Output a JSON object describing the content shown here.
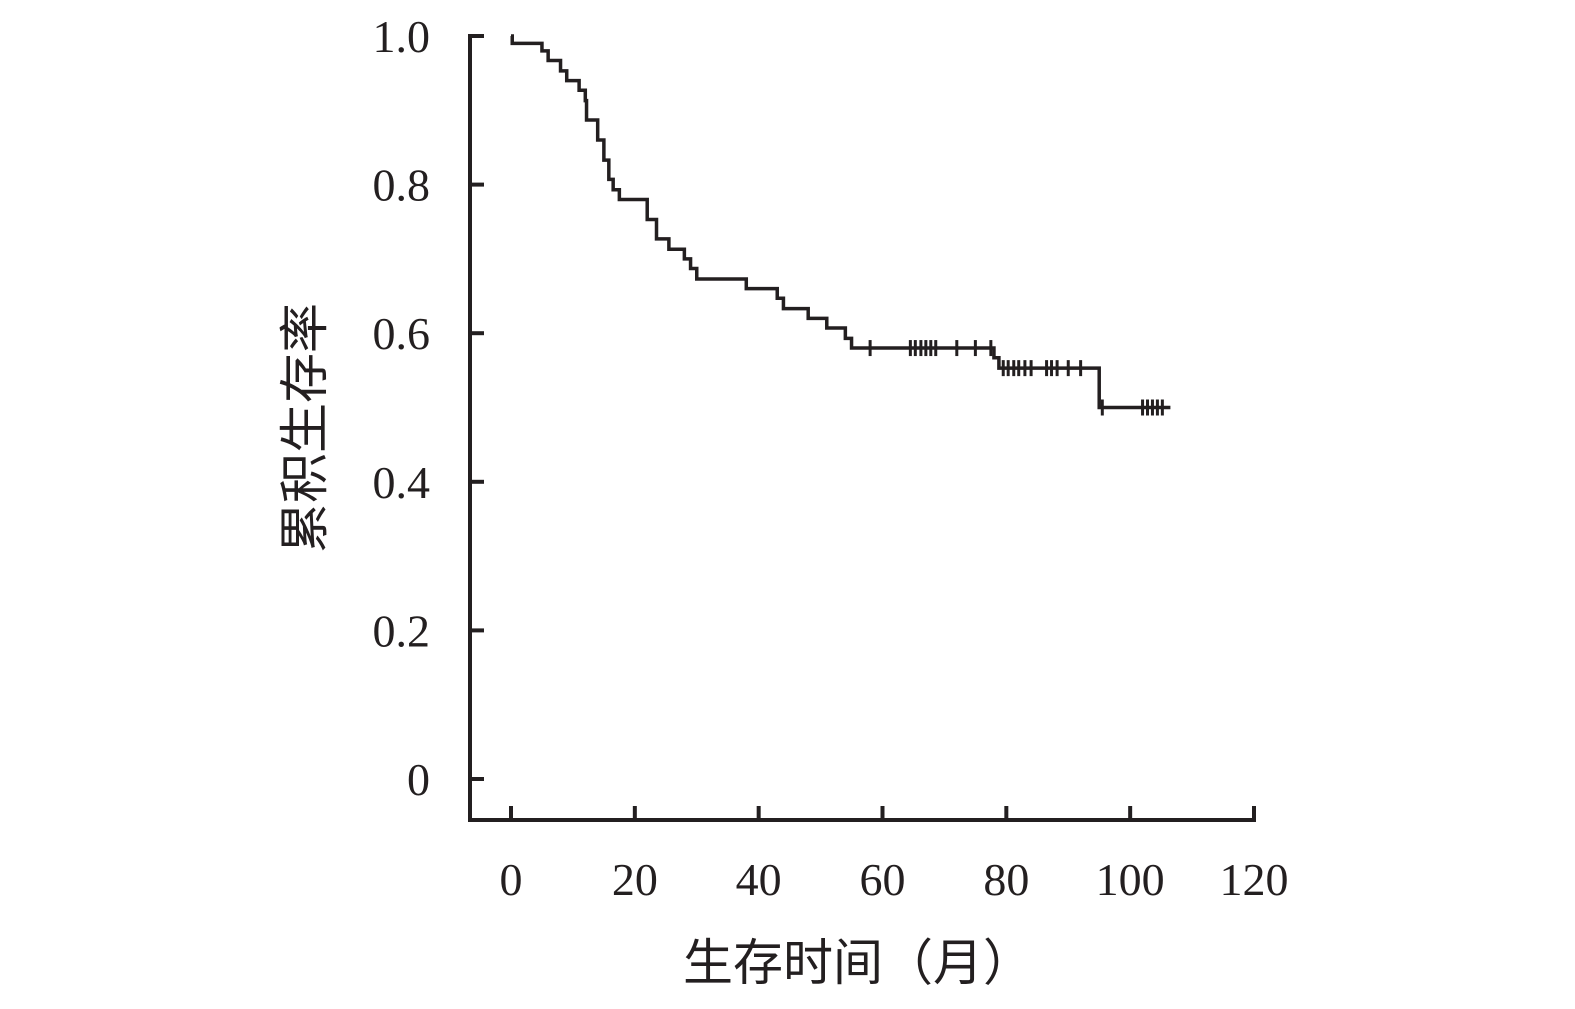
{
  "chart_data": {
    "type": "line",
    "subtype": "kaplan-meier step curve with censor marks",
    "xlabel": "生存时间（月）",
    "ylabel": "累积生存率",
    "xlim": [
      0,
      120
    ],
    "ylim": [
      0,
      1.0
    ],
    "x_ticks": [
      0,
      20,
      40,
      60,
      80,
      100,
      120
    ],
    "x_tick_labels": [
      "0",
      "20",
      "40",
      "60",
      "80",
      "100",
      "120"
    ],
    "y_ticks": [
      0,
      0.2,
      0.4,
      0.6,
      0.8,
      1.0
    ],
    "y_tick_labels": [
      "0",
      "0.2",
      "0.4",
      "0.6",
      "0.8",
      "1.0"
    ],
    "grid": false,
    "series": [
      {
        "steps": [
          [
            0,
            1.0
          ],
          [
            0.2,
            0.99
          ],
          [
            5,
            0.98
          ],
          [
            6,
            0.967
          ],
          [
            8,
            0.953
          ],
          [
            9,
            0.94
          ],
          [
            11,
            0.927
          ],
          [
            12,
            0.913
          ],
          [
            12.2,
            0.887
          ],
          [
            14,
            0.86
          ],
          [
            15,
            0.833
          ],
          [
            15.8,
            0.807
          ],
          [
            16.5,
            0.793
          ],
          [
            17.5,
            0.78
          ],
          [
            22,
            0.753
          ],
          [
            23.5,
            0.727
          ],
          [
            25.5,
            0.713
          ],
          [
            28,
            0.7
          ],
          [
            29,
            0.687
          ],
          [
            30,
            0.673
          ],
          [
            38,
            0.66
          ],
          [
            43,
            0.647
          ],
          [
            44,
            0.633
          ],
          [
            48,
            0.62
          ],
          [
            51,
            0.607
          ],
          [
            54,
            0.593
          ],
          [
            55,
            0.58
          ],
          [
            78,
            0.567
          ],
          [
            78.8,
            0.553
          ],
          [
            95,
            0.5
          ],
          [
            106.5,
            0.5
          ]
        ],
        "censored": [
          {
            "x": 58,
            "y": 0.58
          },
          {
            "x": 64.5,
            "y": 0.58
          },
          {
            "x": 65.3,
            "y": 0.58
          },
          {
            "x": 66.2,
            "y": 0.58
          },
          {
            "x": 67,
            "y": 0.58
          },
          {
            "x": 67.8,
            "y": 0.58
          },
          {
            "x": 68.6,
            "y": 0.58
          },
          {
            "x": 72,
            "y": 0.58
          },
          {
            "x": 75,
            "y": 0.58
          },
          {
            "x": 77.5,
            "y": 0.58
          },
          {
            "x": 79.5,
            "y": 0.553
          },
          {
            "x": 80.3,
            "y": 0.553
          },
          {
            "x": 81.2,
            "y": 0.553
          },
          {
            "x": 82,
            "y": 0.553
          },
          {
            "x": 83,
            "y": 0.553
          },
          {
            "x": 84,
            "y": 0.553
          },
          {
            "x": 86.5,
            "y": 0.553
          },
          {
            "x": 87.3,
            "y": 0.553
          },
          {
            "x": 88.2,
            "y": 0.553
          },
          {
            "x": 90,
            "y": 0.553
          },
          {
            "x": 92,
            "y": 0.553
          },
          {
            "x": 95.5,
            "y": 0.5
          },
          {
            "x": 102,
            "y": 0.5
          },
          {
            "x": 102.8,
            "y": 0.5
          },
          {
            "x": 103.6,
            "y": 0.5
          },
          {
            "x": 104.4,
            "y": 0.5
          },
          {
            "x": 105.2,
            "y": 0.5
          }
        ]
      }
    ]
  },
  "colors": {
    "ink": "#231f20",
    "background": "#ffffff"
  }
}
